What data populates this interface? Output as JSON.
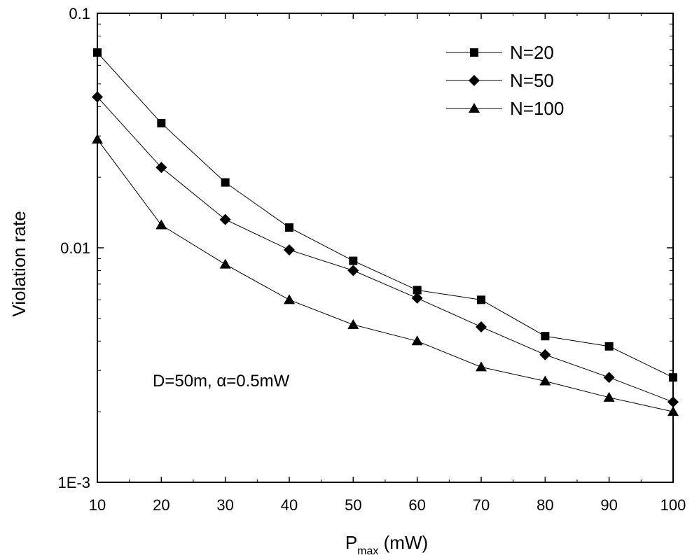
{
  "chart_data": {
    "type": "line",
    "title": "",
    "xlabel": {
      "main": "P",
      "sub": "max",
      "rest": " (mW)"
    },
    "ylabel": "Violation rate",
    "x": [
      10,
      20,
      30,
      40,
      50,
      60,
      70,
      80,
      90,
      100
    ],
    "xlim": [
      10,
      100
    ],
    "ylim": [
      0.001,
      0.1
    ],
    "yscale": "log",
    "x_tick_labels": [
      "10",
      "20",
      "30",
      "40",
      "50",
      "60",
      "70",
      "80",
      "90",
      "100"
    ],
    "y_ticks": [
      {
        "value": 0.1,
        "label": "0.1"
      },
      {
        "value": 0.01,
        "label": "0.01"
      },
      {
        "value": 0.001,
        "label": "1E-3"
      }
    ],
    "legend_position": "top-right",
    "grid": false,
    "series": [
      {
        "name": "N=20",
        "marker": "square",
        "values": [
          0.068,
          0.034,
          0.019,
          0.0122,
          0.0088,
          0.0066,
          0.006,
          0.0042,
          0.0038,
          0.0028
        ]
      },
      {
        "name": "N=50",
        "marker": "diamond",
        "values": [
          0.044,
          0.022,
          0.0132,
          0.0098,
          0.008,
          0.0061,
          0.0046,
          0.0035,
          0.0028,
          0.0022
        ]
      },
      {
        "name": "N=100",
        "marker": "triangle",
        "values": [
          0.029,
          0.0125,
          0.0085,
          0.006,
          0.0047,
          0.004,
          0.0031,
          0.0027,
          0.0023,
          0.002
        ]
      }
    ],
    "annotation": "D=50m, α=0.5mW"
  }
}
